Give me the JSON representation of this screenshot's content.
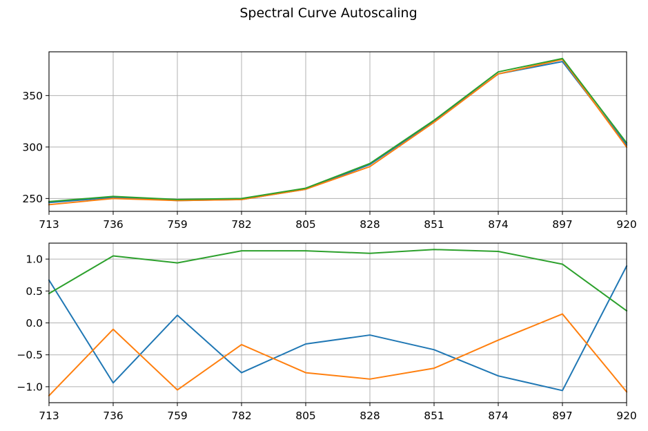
{
  "chart_data": {
    "type": "line",
    "title": "Spectral Curve Autoscaling",
    "colors": [
      "#1f77b4",
      "#ff7f0e",
      "#2ca02c"
    ],
    "panels": [
      {
        "x": [
          713,
          736,
          759,
          782,
          805,
          828,
          851,
          874,
          897,
          920
        ],
        "xticks": [
          "713",
          "736",
          "759",
          "782",
          "805",
          "828",
          "851",
          "874",
          "897",
          "920"
        ],
        "xlim": [
          713,
          920
        ],
        "ylim": [
          237.5,
          392.5
        ],
        "yticks": [
          250,
          300,
          350
        ],
        "ytick_labels": [
          "250",
          "300",
          "350"
        ],
        "grid": true,
        "series": [
          {
            "values": [
              246,
              251,
              248,
              249,
              259,
              283,
              325,
              371,
              383,
              302
            ]
          },
          {
            "values": [
              244,
              250,
              248,
              249,
              259,
              281,
              324,
              371,
              385,
              300
            ]
          },
          {
            "values": [
              247,
              252,
              249,
              250,
              260,
              284,
              326,
              373,
              386,
              304
            ]
          }
        ]
      },
      {
        "x": [
          713,
          736,
          759,
          782,
          805,
          828,
          851,
          874,
          897,
          920
        ],
        "xticks": [
          "713",
          "736",
          "759",
          "782",
          "805",
          "828",
          "851",
          "874",
          "897",
          "920"
        ],
        "xlim": [
          713,
          920
        ],
        "ylim": [
          -1.25,
          1.25
        ],
        "yticks": [
          -1.0,
          -0.5,
          0.0,
          0.5,
          1.0
        ],
        "ytick_labels": [
          "−1.0",
          "−0.5",
          "0.0",
          "0.5",
          "1.0"
        ],
        "grid": true,
        "series": [
          {
            "values": [
              0.67,
              -0.94,
              0.12,
              -0.78,
              -0.33,
              -0.19,
              -0.42,
              -0.83,
              -1.06,
              0.89
            ]
          },
          {
            "values": [
              -1.14,
              -0.1,
              -1.05,
              -0.34,
              -0.78,
              -0.88,
              -0.71,
              -0.27,
              0.14,
              -1.08
            ]
          },
          {
            "values": [
              0.46,
              1.05,
              0.94,
              1.13,
              1.13,
              1.09,
              1.15,
              1.12,
              0.92,
              0.19
            ]
          }
        ]
      }
    ]
  }
}
